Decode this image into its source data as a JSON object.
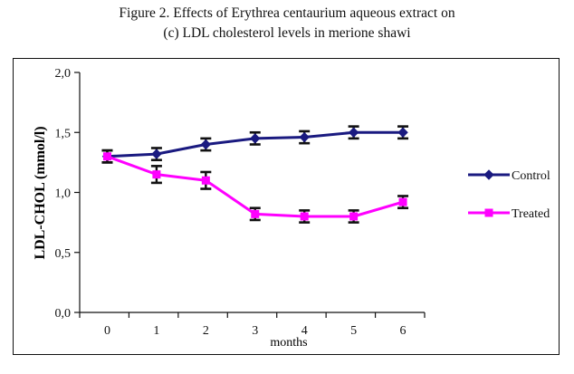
{
  "figure": {
    "title_line1": "Figure 2. Effects of Erythrea centaurium aqueous extract on",
    "title_line2": "(c) LDL cholesterol levels in merione shawi"
  },
  "chart_data": {
    "type": "line",
    "title": "",
    "ylabel": "LDL-CHOL (mmol/l)",
    "xlabel": "months",
    "x": [
      0,
      1,
      2,
      3,
      4,
      5,
      6
    ],
    "x_tick_labels": [
      "0",
      "1",
      "2",
      "3",
      "4",
      "5",
      "6"
    ],
    "ylim": [
      0,
      2
    ],
    "y_ticks": [
      0,
      0.5,
      1,
      1.5,
      2
    ],
    "y_tick_labels": [
      "0,0",
      "0,5",
      "1,0",
      "1,5",
      "2,0"
    ],
    "grid": false,
    "legend_position": "right",
    "series": [
      {
        "name": "Control",
        "color": "#1a1a80",
        "marker": "diamond",
        "values": [
          1.3,
          1.32,
          1.4,
          1.45,
          1.46,
          1.5,
          1.5
        ],
        "error": [
          0.05,
          0.05,
          0.05,
          0.05,
          0.05,
          0.05,
          0.05
        ]
      },
      {
        "name": "Treated",
        "color": "#ff00ff",
        "marker": "square",
        "values": [
          1.3,
          1.15,
          1.1,
          0.82,
          0.8,
          0.8,
          0.92
        ],
        "error": [
          0.05,
          0.07,
          0.07,
          0.05,
          0.05,
          0.05,
          0.05
        ]
      }
    ]
  }
}
